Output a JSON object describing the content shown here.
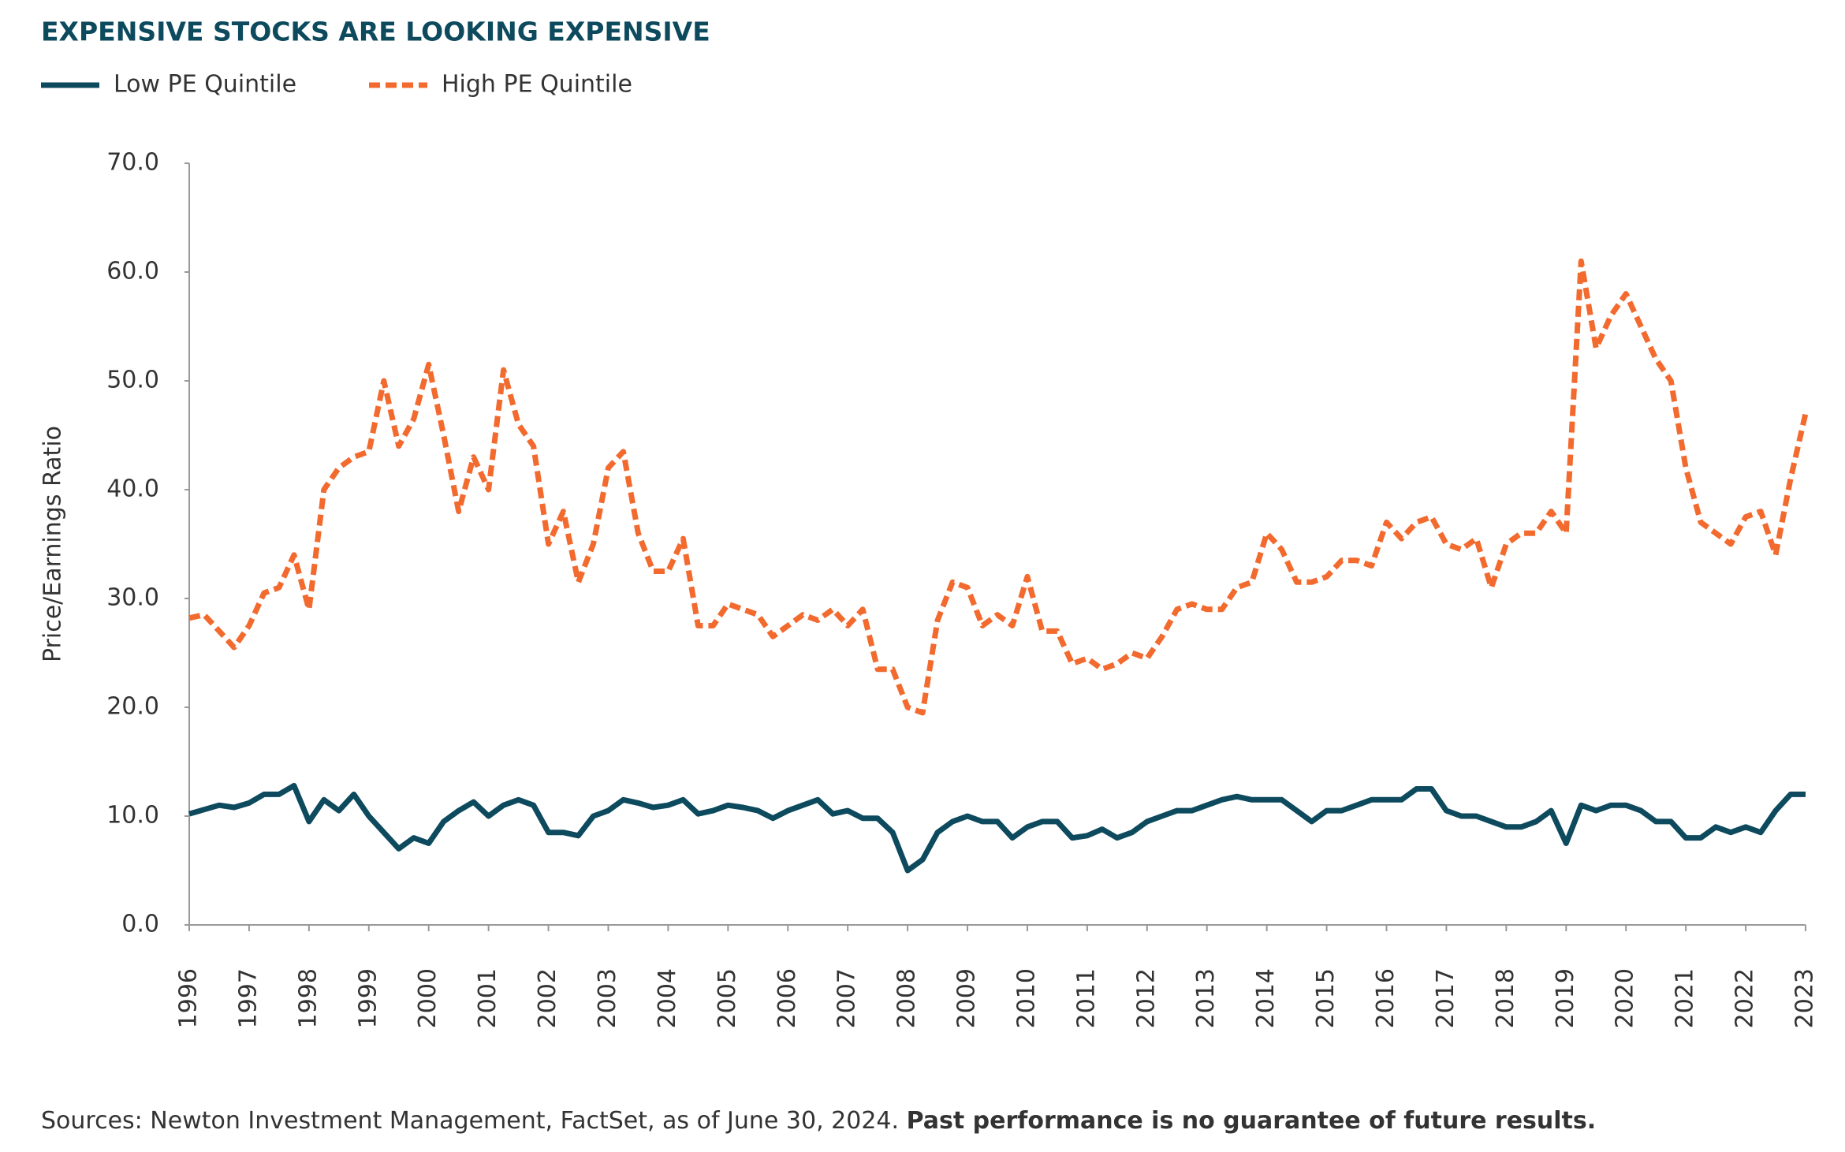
{
  "chart_data": {
    "type": "line",
    "title": "EXPENSIVE STOCKS ARE LOOKING EXPENSIVE",
    "ylabel": "Price/Earnings Ratio",
    "source": "Sources: Newton Investment Management, FactSet, as of June 30, 2024.",
    "note": "Past performance is no guarantee of future results.",
    "x": [
      1996,
      1996.25,
      1996.5,
      1996.75,
      1997,
      1997.25,
      1997.5,
      1997.75,
      1998,
      1998.25,
      1998.5,
      1998.75,
      1999,
      1999.25,
      1999.5,
      1999.75,
      2000,
      2000.25,
      2000.5,
      2000.75,
      2001,
      2001.25,
      2001.5,
      2001.75,
      2002,
      2002.25,
      2002.5,
      2002.75,
      2003,
      2003.25,
      2003.5,
      2003.75,
      2004,
      2004.25,
      2004.5,
      2004.75,
      2005,
      2005.25,
      2005.5,
      2005.75,
      2006,
      2006.25,
      2006.5,
      2006.75,
      2007,
      2007.25,
      2007.5,
      2007.75,
      2008,
      2008.25,
      2008.5,
      2008.75,
      2009,
      2009.25,
      2009.5,
      2009.75,
      2010,
      2010.25,
      2010.5,
      2010.75,
      2011,
      2011.25,
      2011.5,
      2011.75,
      2012,
      2012.25,
      2012.5,
      2012.75,
      2013,
      2013.25,
      2013.5,
      2013.75,
      2014,
      2014.25,
      2014.5,
      2014.75,
      2015,
      2015.25,
      2015.5,
      2015.75,
      2016,
      2016.25,
      2016.5,
      2016.75,
      2017,
      2017.25,
      2017.5,
      2017.75,
      2018,
      2018.25,
      2018.5,
      2018.75,
      2019,
      2019.25,
      2019.5,
      2019.75,
      2020,
      2020.25,
      2020.5,
      2020.75,
      2021,
      2021.25,
      2021.5,
      2021.75,
      2022,
      2022.25,
      2022.5,
      2022.75,
      2023
    ],
    "series": [
      {
        "name": "Low PE Quintile",
        "color": "#0d4a5e",
        "dash": false,
        "values": [
          10.2,
          10.6,
          11,
          10.8,
          11.2,
          12,
          12,
          12.8,
          9.5,
          11.5,
          10.5,
          12,
          10,
          8.5,
          7,
          8,
          7.5,
          9.5,
          10.5,
          11.3,
          10,
          11,
          11.5,
          11,
          8.5,
          8.5,
          8.2,
          10,
          10.5,
          11.5,
          11.2,
          10.8,
          11,
          11.5,
          10.2,
          10.5,
          11,
          10.8,
          10.5,
          9.8,
          10.5,
          11,
          11.5,
          10.2,
          10.5,
          9.8,
          9.8,
          8.5,
          5,
          6,
          8.5,
          9.5,
          10,
          9.5,
          9.5,
          8,
          9,
          9.5,
          9.5,
          8,
          8.2,
          8.8,
          8,
          8.5,
          9.5,
          10,
          10.5,
          10.5,
          11,
          11.5,
          11.8,
          11.5,
          11.5,
          11.5,
          10.5,
          9.5,
          10.5,
          10.5,
          11,
          11.5,
          11.5,
          11.5,
          12.5,
          12.5,
          10.5,
          10,
          10,
          9.5,
          9,
          9,
          9.5,
          10.5,
          7.5,
          11,
          10.5,
          11,
          11,
          10.5,
          9.5,
          9.5,
          8,
          8,
          9,
          8.5,
          9,
          8.5,
          10.5,
          12,
          12
        ]
      },
      {
        "name": "High PE Quintile",
        "color": "#f26a2e",
        "dash": true,
        "values": [
          28.2,
          28.5,
          27,
          25.5,
          27.5,
          30.5,
          31,
          34,
          29,
          40,
          42,
          43,
          43.5,
          50,
          44,
          46.5,
          51.5,
          45,
          38,
          43,
          40,
          51,
          46,
          44,
          35,
          38,
          31.5,
          35,
          42,
          43.5,
          36,
          32.5,
          32.5,
          35.5,
          27.5,
          27.5,
          29.5,
          29,
          28.5,
          26.5,
          27.5,
          28.5,
          28,
          29,
          27.5,
          29,
          23.5,
          23.5,
          20,
          19.5,
          28,
          31.5,
          31,
          27.5,
          28.5,
          27.5,
          32,
          27,
          27,
          24,
          24.5,
          23.5,
          24,
          25,
          24.5,
          26.5,
          29,
          29.5,
          29,
          29,
          31,
          31.5,
          36,
          34.5,
          31.5,
          31.5,
          32,
          33.5,
          33.5,
          33,
          37,
          35.5,
          37,
          37.5,
          35,
          34.5,
          35.5,
          31,
          35,
          36,
          36,
          38,
          36,
          61,
          53,
          56,
          58,
          55,
          52,
          50,
          42,
          37,
          36,
          35,
          37.5,
          38,
          34,
          41,
          47
        ]
      }
    ],
    "xlim": [
      1996,
      2023
    ],
    "xticks": [
      1996,
      1997,
      1998,
      1999,
      2000,
      2001,
      2002,
      2003,
      2004,
      2005,
      2006,
      2007,
      2008,
      2009,
      2010,
      2011,
      2012,
      2013,
      2014,
      2015,
      2016,
      2017,
      2018,
      2019,
      2020,
      2021,
      2022,
      2023
    ],
    "ylim": [
      0,
      70
    ],
    "yticks": [
      {
        "value": 0,
        "label": "0.0"
      },
      {
        "value": 10,
        "label": "10.0"
      },
      {
        "value": 20,
        "label": "20.0"
      },
      {
        "value": 30,
        "label": "30.0"
      },
      {
        "value": 40,
        "label": "40.0"
      },
      {
        "value": 50,
        "label": "50.0"
      },
      {
        "value": 60,
        "label": "60.0"
      },
      {
        "value": 70,
        "label": "70.0"
      }
    ],
    "grid": false
  }
}
